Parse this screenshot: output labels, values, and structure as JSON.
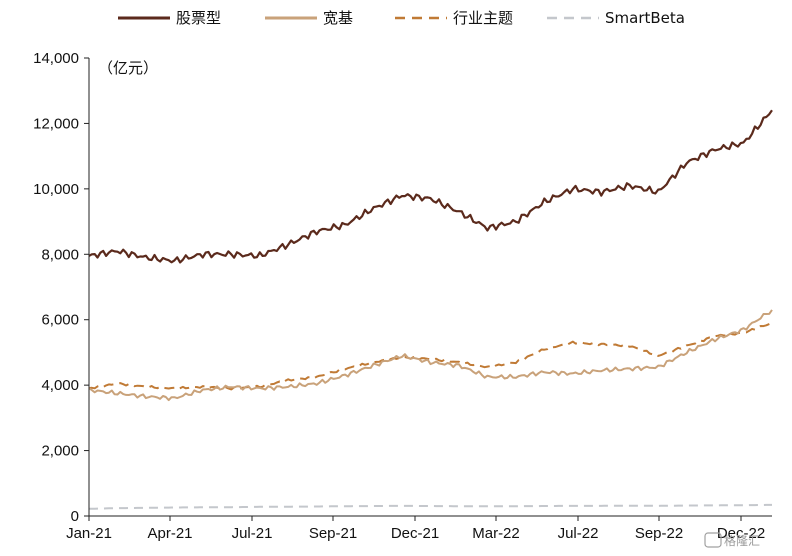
{
  "chart_data": {
    "type": "line",
    "unit_label": "（亿元）",
    "title": "",
    "xlabel": "",
    "ylabel": "",
    "ylim": [
      0,
      14000
    ],
    "yticks": [
      0,
      2000,
      4000,
      6000,
      8000,
      10000,
      12000,
      14000
    ],
    "ytick_labels": [
      "0",
      "2,000",
      "4,000",
      "6,000",
      "8,000",
      "10,000",
      "12,000",
      "14,000"
    ],
    "xticks": [
      "Jan-21",
      "Apr-21",
      "Jul-21",
      "Sep-21",
      "Dec-21",
      "Mar-22",
      "Jul-22",
      "Sep-22",
      "Dec-22"
    ],
    "x": [
      "Jan-21",
      "Feb-21",
      "Mar-21",
      "Apr-21",
      "May-21",
      "Jun-21",
      "Jul-21",
      "Aug-21",
      "Sep-21",
      "Oct-21",
      "Nov-21",
      "Dec-21",
      "Jan-22",
      "Feb-22",
      "Mar-22",
      "Apr-22",
      "May-22",
      "Jun-22",
      "Jul-22",
      "Aug-22",
      "Sep-22",
      "Oct-22",
      "Nov-22",
      "Dec-22",
      "Jan-23"
    ],
    "grid": false,
    "legend_position": "top",
    "series": [
      {
        "name": "股票型",
        "color": "#5b2a1c",
        "dash": "solid",
        "values": [
          7950,
          8100,
          7900,
          7800,
          8000,
          8000,
          7950,
          8300,
          8700,
          8900,
          9400,
          9800,
          9700,
          9300,
          8800,
          9000,
          9600,
          10000,
          9900,
          10100,
          9900,
          10800,
          11200,
          11400,
          12400
        ]
      },
      {
        "name": "宽基",
        "color": "#c9a27a",
        "dash": "solid",
        "values": [
          3850,
          3750,
          3650,
          3600,
          3850,
          3950,
          3900,
          3950,
          4050,
          4300,
          4600,
          4900,
          4700,
          4600,
          4250,
          4250,
          4400,
          4350,
          4450,
          4500,
          4550,
          5000,
          5400,
          5700,
          6300
        ]
      },
      {
        "name": "行业主题",
        "color": "#c07a35",
        "dash": "dashed",
        "values": [
          3900,
          4050,
          3950,
          3900,
          3950,
          3900,
          3950,
          4150,
          4250,
          4500,
          4700,
          4850,
          4800,
          4700,
          4550,
          4700,
          5100,
          5300,
          5250,
          5200,
          4900,
          5200,
          5500,
          5600,
          5900
        ]
      },
      {
        "name": "SmartBeta",
        "color": "#c4c7cc",
        "dash": "dashed",
        "values": [
          220,
          240,
          250,
          260,
          265,
          270,
          280,
          285,
          290,
          300,
          305,
          310,
          305,
          300,
          295,
          300,
          305,
          310,
          310,
          315,
          310,
          320,
          325,
          330,
          340
        ]
      }
    ]
  },
  "watermark": "格隆汇"
}
